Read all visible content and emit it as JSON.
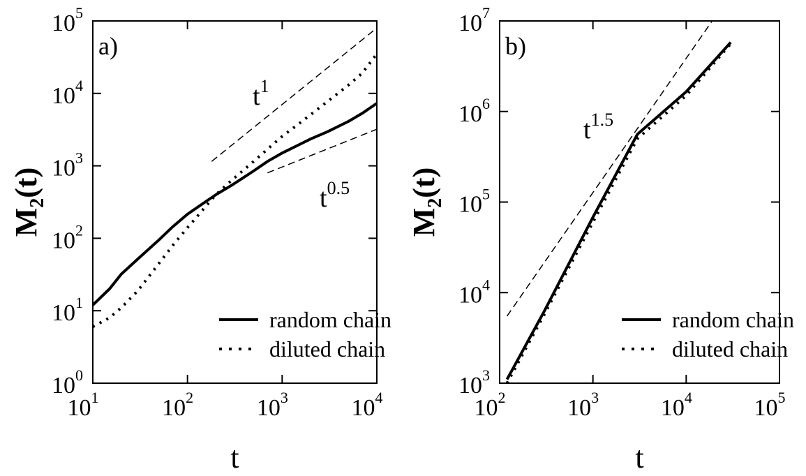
{
  "chart_data": [
    {
      "type": "line",
      "panel_label": "a)",
      "xlabel": "t",
      "ylabel": {
        "main": "M",
        "sub": "2",
        "suffix": "(t)"
      },
      "x_scale": "log",
      "y_scale": "log",
      "xlim": [
        10,
        10000
      ],
      "ylim": [
        1,
        100000
      ],
      "x_ticks": [
        {
          "base": "10",
          "exp": "1"
        },
        {
          "base": "10",
          "exp": "2"
        },
        {
          "base": "10",
          "exp": "3"
        },
        {
          "base": "10",
          "exp": "4"
        }
      ],
      "y_ticks": [
        {
          "base": "10",
          "exp": "0"
        },
        {
          "base": "10",
          "exp": "1"
        },
        {
          "base": "10",
          "exp": "2"
        },
        {
          "base": "10",
          "exp": "3"
        },
        {
          "base": "10",
          "exp": "4"
        },
        {
          "base": "10",
          "exp": "5"
        }
      ],
      "legend_position": "bottom-right",
      "series": [
        {
          "name": "random chain",
          "style": "solid",
          "x": [
            10,
            15,
            20,
            30,
            50,
            70,
            100,
            150,
            200,
            300,
            500,
            700,
            1000,
            1500,
            2000,
            3000,
            5000,
            7000,
            10000
          ],
          "y": [
            12,
            20,
            32,
            52,
            95,
            145,
            215,
            310,
            400,
            550,
            850,
            1150,
            1500,
            1950,
            2350,
            2950,
            4100,
            5300,
            7300
          ]
        },
        {
          "name": "diluted chain",
          "style": "dotted",
          "x": [
            10,
            15,
            20,
            30,
            50,
            70,
            100,
            150,
            200,
            300,
            500,
            700,
            1000,
            1500,
            2000,
            3000,
            5000,
            7000,
            10000
          ],
          "y": [
            6,
            8,
            11,
            19,
            45,
            80,
            140,
            260,
            400,
            650,
            1150,
            1700,
            2550,
            3800,
            5100,
            7700,
            13000,
            19000,
            35000
          ]
        }
      ],
      "guides": [
        {
          "label": "t",
          "exponent": "1",
          "x": [
            180,
            10000
          ],
          "y": [
            1150,
            80000
          ]
        },
        {
          "label": "t",
          "exponent": "0.5",
          "x": [
            700,
            10000
          ],
          "y": [
            800,
            3200
          ]
        }
      ]
    },
    {
      "type": "line",
      "panel_label": "b)",
      "xlabel": "t",
      "ylabel": {
        "main": "M",
        "sub": "2",
        "suffix": "(t)"
      },
      "x_scale": "log",
      "y_scale": "log",
      "xlim": [
        100,
        100000
      ],
      "ylim": [
        1000,
        10000000
      ],
      "x_ticks": [
        {
          "base": "10",
          "exp": "2"
        },
        {
          "base": "10",
          "exp": "3"
        },
        {
          "base": "10",
          "exp": "4"
        },
        {
          "base": "10",
          "exp": "5"
        }
      ],
      "y_ticks": [
        {
          "base": "10",
          "exp": "3"
        },
        {
          "base": "10",
          "exp": "4"
        },
        {
          "base": "10",
          "exp": "5"
        },
        {
          "base": "10",
          "exp": "6"
        },
        {
          "base": "10",
          "exp": "7"
        }
      ],
      "legend_position": "bottom-right",
      "series": [
        {
          "name": "random chain",
          "style": "solid",
          "x": [
            120,
            300,
            1000,
            3000,
            10000,
            30000
          ],
          "y": [
            1100,
            6200,
            68000,
            560000,
            1650000,
            5800000
          ]
        },
        {
          "name": "diluted chain",
          "style": "dotted",
          "x": [
            120,
            300,
            1000,
            3000,
            10000,
            30000
          ],
          "y": [
            1000,
            5700,
            60000,
            500000,
            1500000,
            5600000
          ]
        }
      ],
      "guides": [
        {
          "label": "t",
          "exponent": "1.5",
          "x": [
            120,
            19000
          ],
          "y": [
            5500,
            10000000
          ]
        }
      ]
    }
  ]
}
